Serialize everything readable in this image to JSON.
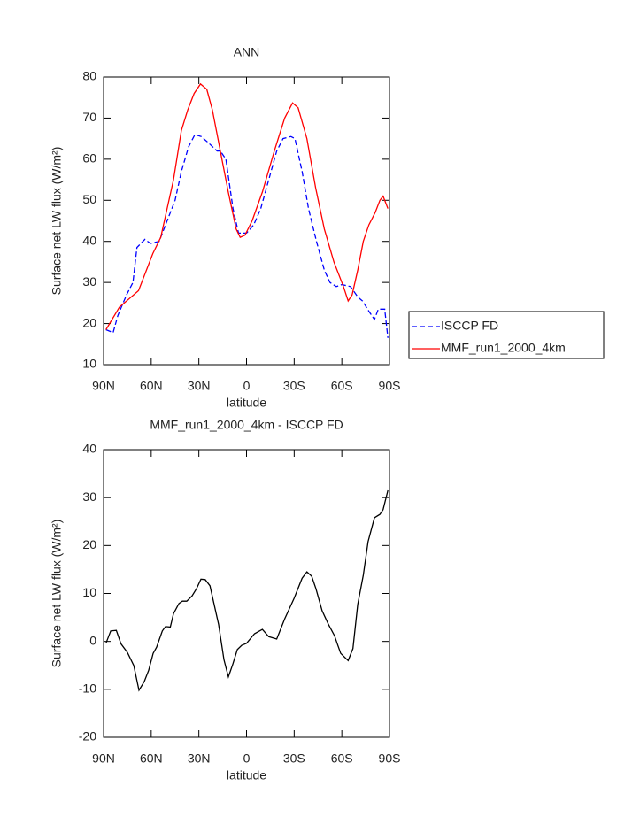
{
  "chart_data": [
    {
      "type": "line",
      "title": "ANN",
      "xlabel": "latitude",
      "ylabel": "Surface net LW flux (W/m²)",
      "xlim": [
        90,
        -90
      ],
      "ylim": [
        10,
        80
      ],
      "xticks": [
        {
          "value": 90,
          "label": "90N"
        },
        {
          "value": 60,
          "label": "60N"
        },
        {
          "value": 30,
          "label": "30N"
        },
        0,
        {
          "value": -30,
          "label": "30S"
        },
        {
          "value": -60,
          "label": "60S"
        },
        {
          "value": -90,
          "label": "90S"
        }
      ],
      "yticks": [
        10,
        20,
        30,
        40,
        50,
        60,
        70,
        80
      ],
      "legend": "right",
      "series": [
        {
          "name": "ISCCP FD",
          "color": "#0000ff",
          "linestyle": "dashed",
          "x": [
            88.5,
            84,
            81,
            75.5,
            71.5,
            69,
            64,
            60.5,
            55,
            48,
            45,
            41,
            36.5,
            32.5,
            28.5,
            24,
            18.5,
            16.5,
            13,
            8.5,
            5,
            0,
            -4.5,
            -9,
            -14,
            -19,
            -23,
            -28,
            -30.5,
            -35,
            -39,
            -44,
            -49,
            -52.5,
            -56.5,
            -60,
            -65.5,
            -70,
            -73,
            -77,
            -80.5,
            -83,
            -87,
            -89
          ],
          "values": [
            18.5,
            17.8,
            22,
            27,
            30,
            38.5,
            40.5,
            39.5,
            40,
            47,
            50,
            57,
            63,
            66,
            65.5,
            64,
            62,
            62,
            60,
            48,
            42,
            42,
            44,
            48,
            55,
            62,
            65,
            65.5,
            65,
            57,
            48,
            40,
            33,
            30,
            29,
            29.5,
            29,
            26.5,
            25.5,
            23,
            21,
            23.5,
            23.5,
            16.5
          ]
        },
        {
          "name": "MMF_run1_2000_4km",
          "color": "#ff0000",
          "linestyle": "solid",
          "x": [
            88.5,
            80,
            68,
            59,
            54,
            46,
            41,
            37,
            33,
            29,
            25,
            21.5,
            16.5,
            11.5,
            6.5,
            4,
            1,
            -3.5,
            -10,
            -17.5,
            -24,
            -29,
            -32.5,
            -38,
            -43.5,
            -49,
            -55,
            -61,
            -64,
            -66.5,
            -70,
            -73.5,
            -77,
            -81,
            -84,
            -86,
            -89
          ],
          "values": [
            18.5,
            24,
            28,
            37,
            41,
            55,
            67,
            72,
            76,
            78.3,
            77,
            72,
            62,
            52,
            43,
            41,
            41.5,
            45,
            52,
            62,
            70,
            73.7,
            72.5,
            65,
            53,
            43,
            35,
            29,
            25.5,
            27,
            33,
            40,
            44,
            47,
            50,
            51,
            48
          ]
        }
      ]
    },
    {
      "type": "line",
      "title": "MMF_run1_2000_4km - ISCCP FD",
      "xlabel": "latitude",
      "ylabel": "Surface net LW flux (W/m²)",
      "xlim": [
        90,
        -90
      ],
      "ylim": [
        -20,
        40
      ],
      "xticks": [
        {
          "value": 90,
          "label": "90N"
        },
        {
          "value": 60,
          "label": "60N"
        },
        {
          "value": 30,
          "label": "30N"
        },
        0,
        {
          "value": -30,
          "label": "30S"
        },
        {
          "value": -60,
          "label": "60S"
        },
        {
          "value": -90,
          "label": "90S"
        }
      ],
      "yticks": [
        -20,
        -10,
        0,
        10,
        20,
        30,
        40
      ],
      "color": "#000000",
      "x": [
        88.5,
        85.5,
        82,
        79,
        75,
        71,
        67.7,
        64.4,
        61.6,
        58.8,
        56.6,
        53,
        51,
        48,
        46,
        42.6,
        40.4,
        37.6,
        34.3,
        31.5,
        28.7,
        26,
        23,
        17.6,
        14.2,
        11.4,
        8.6,
        5.8,
        3,
        0,
        -5,
        -10,
        -14,
        -19,
        -24,
        -30,
        -35,
        -38,
        -41,
        -43.7,
        -47.6,
        -51.5,
        -55.4,
        -57.7,
        -59.3,
        -64,
        -67,
        -70,
        -73.5,
        -76.5,
        -80.5,
        -84,
        -86,
        -89
      ],
      "values": [
        -0.4,
        2.2,
        2.3,
        -0.5,
        -2.3,
        -5,
        -10.2,
        -8.4,
        -6,
        -2.5,
        -1.2,
        2.2,
        3.1,
        3,
        5.8,
        7.9,
        8.4,
        8.4,
        9.5,
        11,
        13,
        12.9,
        11.6,
        3.6,
        -3.8,
        -7.4,
        -4.7,
        -1.7,
        -0.8,
        -0.4,
        1.6,
        2.5,
        1,
        0.5,
        4.7,
        9,
        13.2,
        14.5,
        13.6,
        11,
        6.4,
        3.6,
        1.2,
        -1,
        -2.5,
        -4,
        -1.5,
        7.7,
        13.8,
        20.8,
        25.8,
        26.5,
        27.5,
        31.5
      ]
    }
  ]
}
